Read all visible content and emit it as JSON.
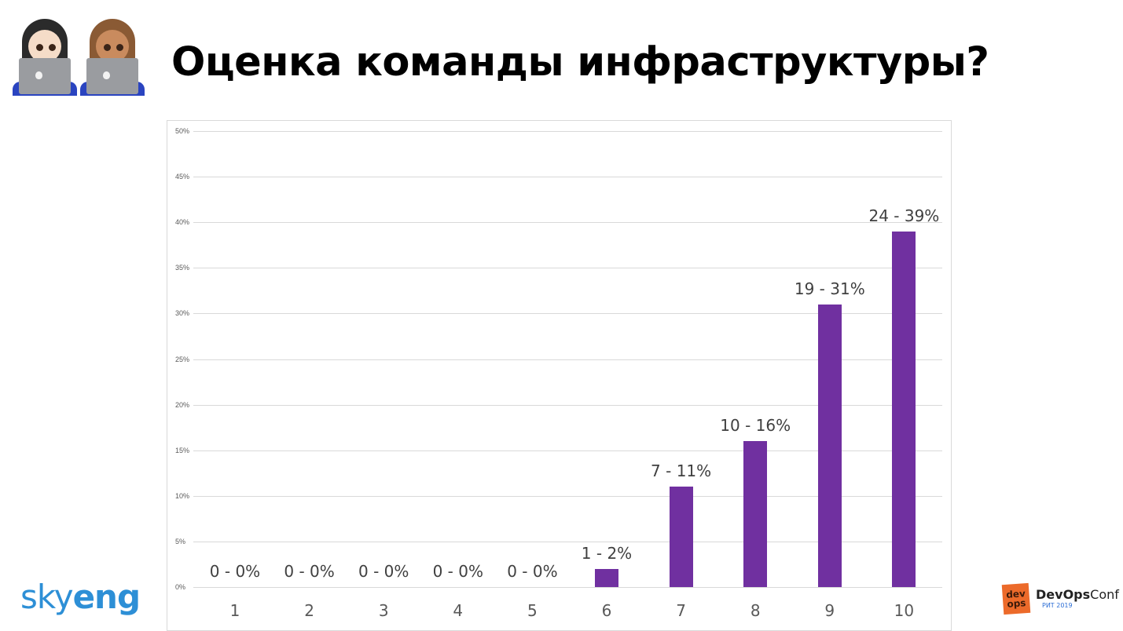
{
  "slide": {
    "title": "Оценка команды инфраструктуры?",
    "header_icon": "people-with-laptops-emoji",
    "logos": {
      "left": {
        "text_light": "sky",
        "text_bold": "eng",
        "color": "#2d8fd6"
      },
      "right": {
        "badge_text": "dev ops",
        "name_bold": "DevOps",
        "name_light": "Conf",
        "subtitle": "РИТ 2019",
        "badge_color": "#ec6a2a"
      }
    }
  },
  "chart_data": {
    "type": "bar",
    "title": "",
    "xlabel": "",
    "ylabel": "",
    "categories": [
      "1",
      "2",
      "3",
      "4",
      "5",
      "6",
      "7",
      "8",
      "9",
      "10"
    ],
    "counts": [
      0,
      0,
      0,
      0,
      0,
      1,
      7,
      10,
      19,
      24
    ],
    "values": [
      0,
      0,
      0,
      0,
      0,
      2,
      11,
      16,
      31,
      39
    ],
    "data_labels": [
      "0 - 0%",
      "0 - 0%",
      "0 - 0%",
      "0 - 0%",
      "0 - 0%",
      "1 - 2%",
      "7 - 11%",
      "10 - 16%",
      "19 - 31%",
      "24 - 39%"
    ],
    "y_ticks": [
      "0%",
      "5%",
      "10%",
      "15%",
      "20%",
      "25%",
      "30%",
      "35%",
      "40%",
      "45%",
      "50%"
    ],
    "ylim": [
      0,
      50
    ],
    "grid": true,
    "legend": "none",
    "bar_color": "#7030a0"
  }
}
